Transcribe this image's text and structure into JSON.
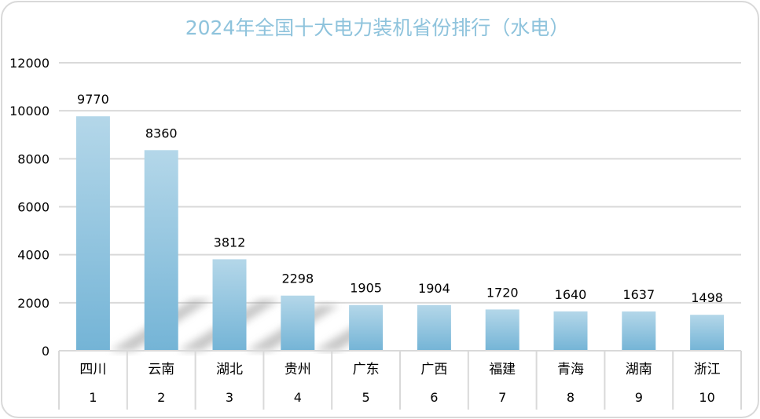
{
  "chart_data": {
    "type": "bar",
    "title": "2024年全国十大电力装机省份排行（水电）",
    "categories": [
      "四川",
      "云南",
      "湖北",
      "贵州",
      "广东",
      "广西",
      "福建",
      "青海",
      "湖南",
      "浙江"
    ],
    "ranks": [
      "1",
      "2",
      "3",
      "4",
      "5",
      "6",
      "7",
      "8",
      "9",
      "10"
    ],
    "values": [
      9770,
      8360,
      3812,
      2298,
      1905,
      1904,
      1720,
      1640,
      1637,
      1498
    ],
    "ylim": [
      0,
      12000
    ],
    "yticks": [
      0,
      2000,
      4000,
      6000,
      8000,
      10000,
      12000
    ],
    "grid": true,
    "data_labels": true,
    "colors": {
      "bar_top": "#b4d7e9",
      "bar_bottom": "#74b4d6",
      "title": "#8ec3dc",
      "grid": "#d9d9d9"
    }
  }
}
